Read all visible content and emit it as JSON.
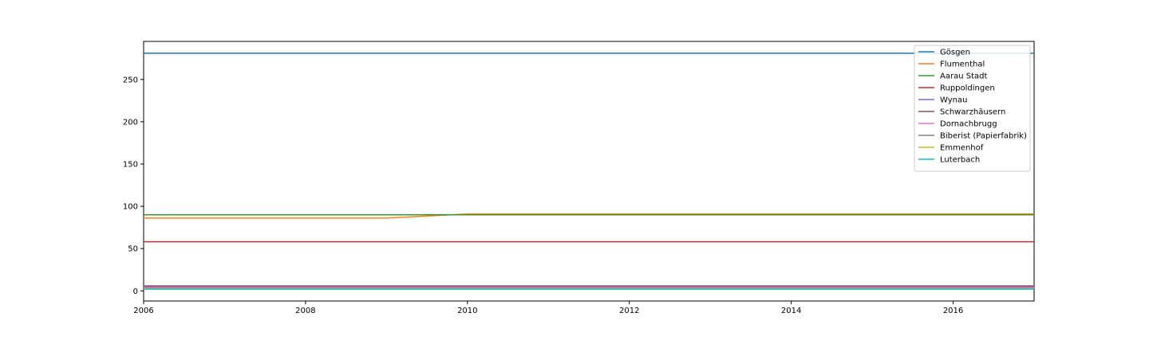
{
  "chart_data": {
    "type": "line",
    "title": "",
    "xlabel": "",
    "ylabel": "",
    "xlim": [
      2006,
      2017
    ],
    "ylim": [
      -12,
      295
    ],
    "xticks": [
      2006,
      2008,
      2010,
      2012,
      2014,
      2016
    ],
    "yticks": [
      0,
      50,
      100,
      150,
      200,
      250
    ],
    "grid": false,
    "legend_position": "top-right",
    "x": [
      2006,
      2007,
      2008,
      2009,
      2010,
      2011,
      2012,
      2013,
      2014,
      2015,
      2016,
      2017
    ],
    "series": [
      {
        "name": "Gösgen",
        "color": "#1f77b4",
        "values": [
          281,
          281,
          281,
          281,
          281,
          281,
          281,
          281,
          281,
          281,
          281,
          281
        ]
      },
      {
        "name": "Flumenthal",
        "color": "#ff7f0e",
        "values": [
          86,
          86,
          86,
          86,
          91,
          91,
          91,
          91,
          91,
          91,
          91,
          91
        ]
      },
      {
        "name": "Aarau Stadt",
        "color": "#2ca02c",
        "values": [
          90,
          90,
          90,
          90,
          90,
          90,
          90,
          90,
          90,
          90,
          90,
          90
        ]
      },
      {
        "name": "Ruppoldingen",
        "color": "#d62728",
        "values": [
          58,
          58,
          58,
          58,
          58,
          58,
          58,
          58,
          58,
          58,
          58,
          58
        ]
      },
      {
        "name": "Wynau",
        "color": "#9467bd",
        "values": [
          6,
          6,
          6,
          6,
          6,
          6,
          6,
          6,
          6,
          6,
          6,
          6
        ]
      },
      {
        "name": "Schwarzhäusern",
        "color": "#8c564b",
        "values": [
          5,
          5,
          5,
          5,
          5,
          5,
          5,
          5,
          5,
          5,
          5,
          5
        ]
      },
      {
        "name": "Dornachbrugg",
        "color": "#e377c2",
        "values": [
          4,
          4,
          4,
          4,
          4,
          4,
          4,
          4,
          4,
          4,
          4,
          4
        ]
      },
      {
        "name": "Biberist (Papierfabrik)",
        "color": "#7f7f7f",
        "values": [
          3,
          3,
          3,
          3,
          3,
          3,
          3,
          3,
          3,
          3,
          3,
          3
        ]
      },
      {
        "name": "Emmenhof",
        "color": "#bcbd22",
        "values": [
          2.5,
          2.5,
          2.5,
          2.5,
          2.5,
          2.5,
          2.5,
          2.5,
          2.5,
          2.5,
          2.5,
          2.5
        ]
      },
      {
        "name": "Luterbach",
        "color": "#17becf",
        "values": [
          2,
          2,
          2,
          2,
          2,
          2,
          2,
          2,
          2,
          2,
          2,
          2
        ]
      }
    ]
  }
}
